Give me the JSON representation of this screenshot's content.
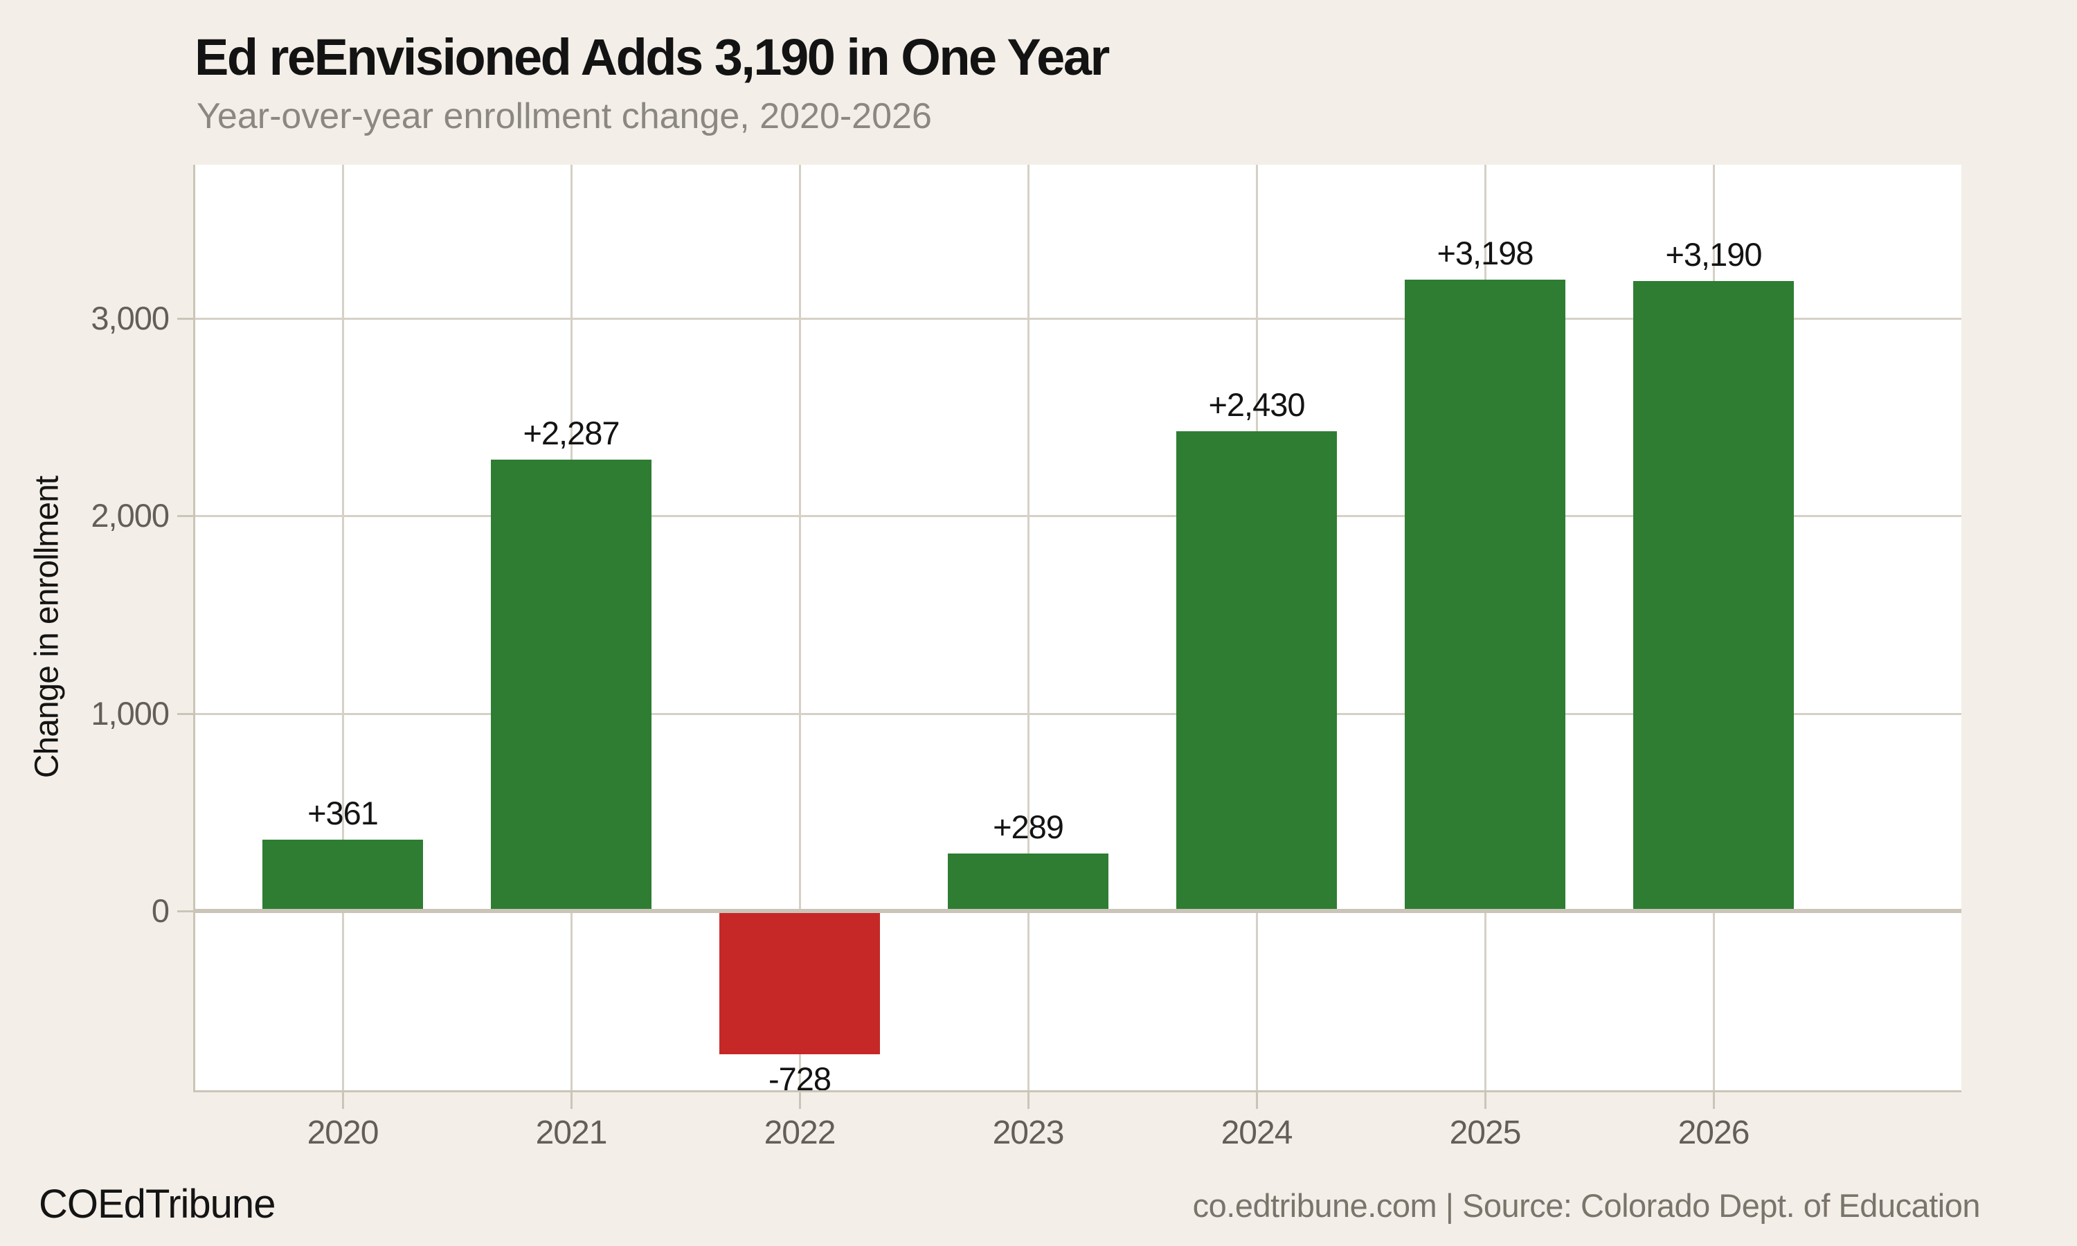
{
  "page": {
    "background_color": "#f3efe8",
    "plot_background_color": "#ffffff",
    "gridline_color": "#d6d0c6",
    "axis_color": "#cbc4b8"
  },
  "footer": {
    "left": "COEdTribune",
    "right": "co.edtribune.com | Source: Colorado Dept. of Education"
  },
  "chart_data": {
    "type": "bar",
    "title": "Ed reEnvisioned Adds 3,190 in One Year",
    "subtitle": "Year-over-year enrollment change, 2020-2026",
    "xlabel": "",
    "ylabel": "Change in enrollment",
    "categories": [
      "2020",
      "2021",
      "2022",
      "2023",
      "2024",
      "2025",
      "2026"
    ],
    "values": [
      361,
      2287,
      -728,
      289,
      2430,
      3198,
      3190
    ],
    "bar_labels": [
      "+361",
      "+2,287",
      "-728",
      "+289",
      "+2,430",
      "+3,198",
      "+3,190"
    ],
    "yticks": [
      0,
      1000,
      2000,
      3000
    ],
    "ytick_labels": [
      "0",
      "1,000",
      "2,000",
      "3,000"
    ],
    "ylim": [
      -910,
      3780
    ],
    "grid": true,
    "legend_position": "none",
    "colors": {
      "positive": "#2e7d32",
      "negative": "#c62828"
    }
  }
}
